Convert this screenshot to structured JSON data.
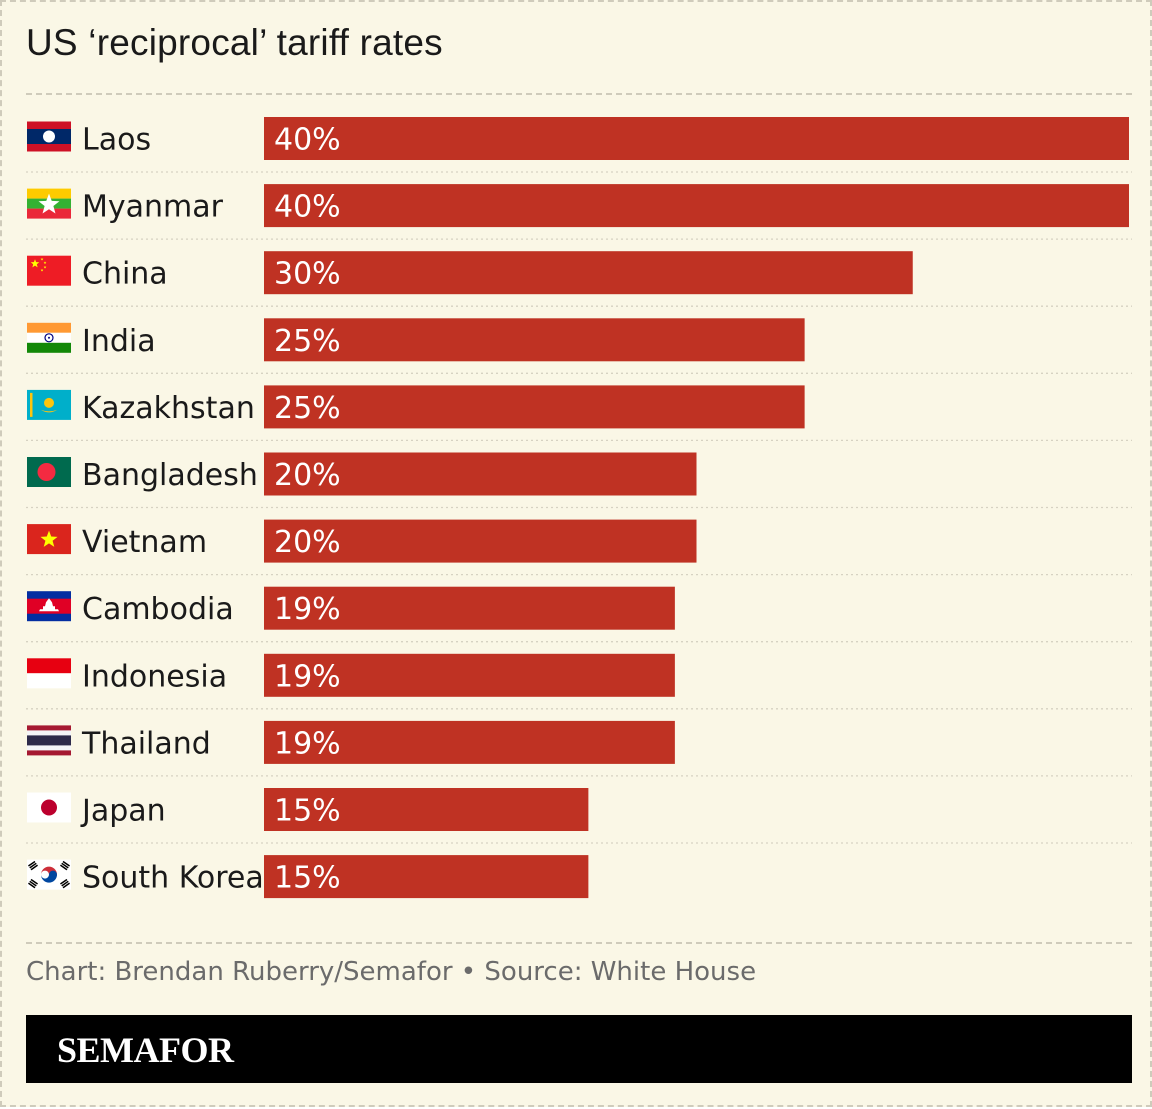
{
  "title": "US ‘reciprocal’ tariff rates",
  "source": "Chart: Brendan Ruberry/Semafor • Source: White House",
  "logo": "SEMAFOR",
  "colors": {
    "bar": "#bf3223",
    "background": "#faf7e6",
    "footer": "#000000"
  },
  "chart_data": {
    "type": "bar",
    "orientation": "horizontal",
    "title": "US ‘reciprocal’ tariff rates",
    "xlabel": "",
    "ylabel": "",
    "xlim": [
      0,
      40
    ],
    "grid": false,
    "legend": "none",
    "categories": [
      "Laos",
      "Myanmar",
      "China",
      "India",
      "Kazakhstan",
      "Bangladesh",
      "Vietnam",
      "Cambodia",
      "Indonesia",
      "Thailand",
      "Japan",
      "South Korea"
    ],
    "values": [
      40,
      40,
      30,
      25,
      25,
      20,
      20,
      19,
      19,
      19,
      15,
      15
    ],
    "value_labels": [
      "40%",
      "40%",
      "30%",
      "25%",
      "25%",
      "20%",
      "20%",
      "19%",
      "19%",
      "19%",
      "15%",
      "15%"
    ],
    "flag_icons": [
      "laos-flag-icon",
      "myanmar-flag-icon",
      "china-flag-icon",
      "india-flag-icon",
      "kazakhstan-flag-icon",
      "bangladesh-flag-icon",
      "vietnam-flag-icon",
      "cambodia-flag-icon",
      "indonesia-flag-icon",
      "thailand-flag-icon",
      "japan-flag-icon",
      "south-korea-flag-icon"
    ]
  }
}
